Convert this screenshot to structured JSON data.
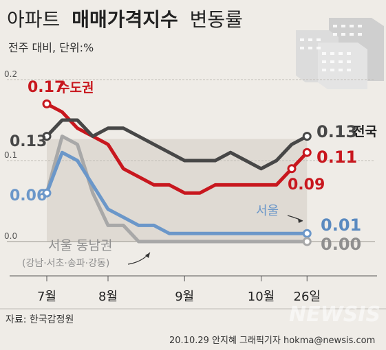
{
  "title": {
    "light": "아파트",
    "bold": "매매가격지수",
    "tail": "변동률"
  },
  "subtitle": "전주 대비, 단위:%",
  "source": "자료: 한국감정원",
  "credit": "20.10.29 안지혜 그래픽기자 hokma@newsis.com",
  "watermark": "NEWSIS",
  "chart_data": {
    "type": "line",
    "x": [
      0,
      1,
      2,
      3,
      4,
      5,
      6,
      7,
      8,
      9,
      10,
      11,
      12,
      13,
      14,
      15,
      16,
      17
    ],
    "x_tick_labels": [
      {
        "i": 0,
        "label": "7월"
      },
      {
        "i": 4,
        "label": "8월"
      },
      {
        "i": 9,
        "label": "9월"
      },
      {
        "i": 14,
        "label": "10월"
      },
      {
        "i": 17,
        "label": "26일"
      }
    ],
    "y_ticks": [
      {
        "v": 0.2,
        "label": "0.2"
      },
      {
        "v": 0.1,
        "label": "0.1"
      },
      {
        "v": 0.0,
        "label": "0.0"
      }
    ],
    "ylim": [
      -0.005,
      0.205
    ],
    "highlight_range": [
      0,
      17
    ],
    "grid": true,
    "series": [
      {
        "key": "capital",
        "name": "수도권",
        "color": "#c8171e",
        "start_label": "0.17",
        "end_label": "0.11",
        "extra_label": "0.09",
        "values": [
          0.17,
          0.16,
          0.14,
          0.13,
          0.12,
          0.09,
          0.08,
          0.07,
          0.07,
          0.06,
          0.06,
          0.07,
          0.07,
          0.07,
          0.07,
          0.07,
          0.09,
          0.11
        ]
      },
      {
        "key": "national",
        "name": "전국",
        "color": "#474747",
        "start_label": "0.13",
        "end_label": "0.13",
        "values": [
          0.13,
          0.15,
          0.15,
          0.13,
          0.14,
          0.14,
          0.13,
          0.12,
          0.11,
          0.1,
          0.1,
          0.1,
          0.11,
          0.1,
          0.09,
          0.1,
          0.12,
          0.13
        ]
      },
      {
        "key": "seoul",
        "name": "서울",
        "color": "#6b97c9",
        "start_label": "0.06",
        "end_label": "0.01",
        "values": [
          0.06,
          0.11,
          0.1,
          0.07,
          0.04,
          0.03,
          0.02,
          0.02,
          0.01,
          0.01,
          0.01,
          0.01,
          0.01,
          0.01,
          0.01,
          0.01,
          0.01,
          0.01
        ]
      },
      {
        "key": "southeast",
        "name": "서울 동남권",
        "sub_name": "(강남·서초·송파·강동)",
        "color": "#a8a8a8",
        "end_label": "0.00",
        "values": [
          0.06,
          0.13,
          0.12,
          0.06,
          0.02,
          0.02,
          0.0,
          0.0,
          0.0,
          0.0,
          0.0,
          0.0,
          0.0,
          0.0,
          0.0,
          0.0,
          0.0,
          0.0
        ]
      }
    ]
  }
}
